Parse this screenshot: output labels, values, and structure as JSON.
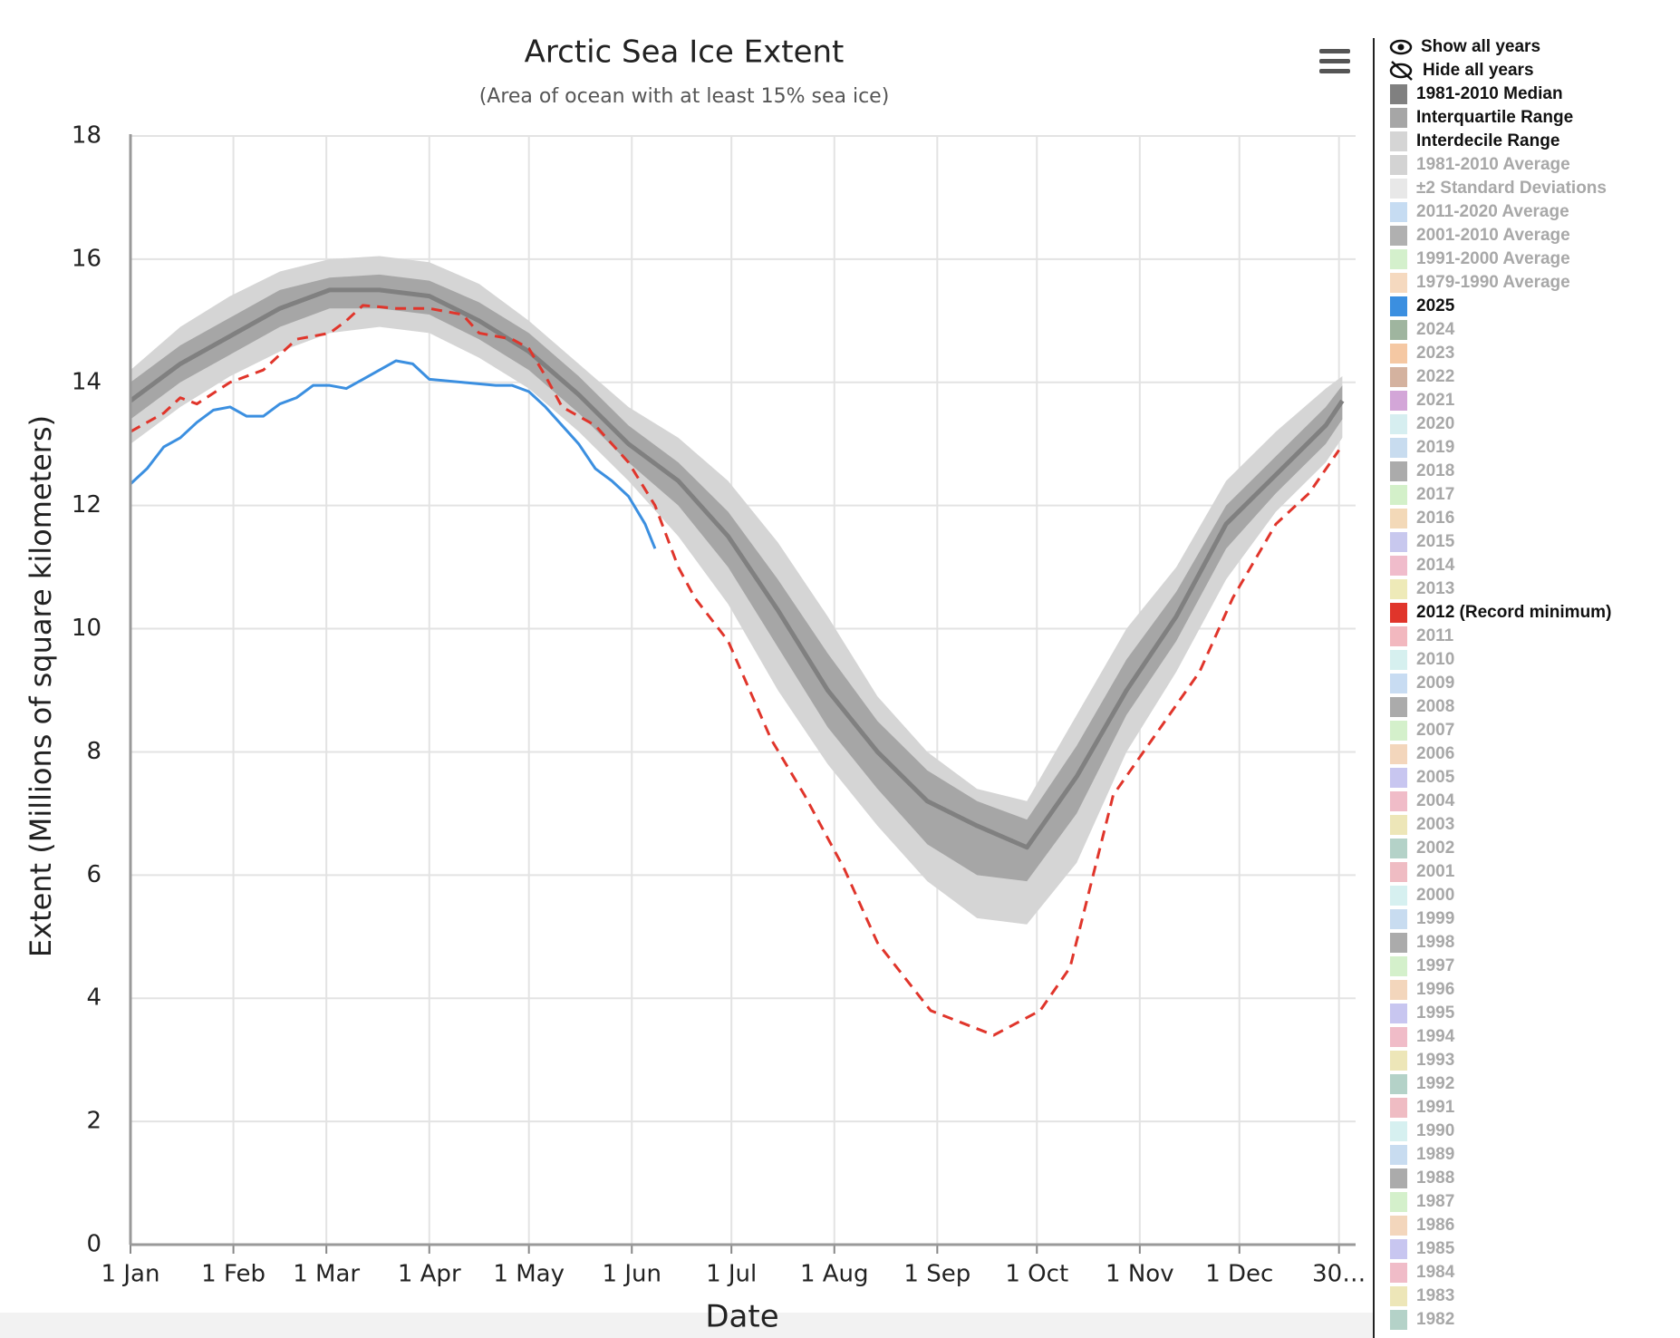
{
  "chart_data": {
    "type": "line",
    "title": "Arctic Sea Ice Extent",
    "subtitle": "(Area of ocean with at least 15% sea ice)",
    "xlabel": "Date",
    "ylabel": "Extent (Millions of square kilometers)",
    "xlim": [
      0,
      369
    ],
    "ylim": [
      0,
      18
    ],
    "yticks": [
      0,
      2,
      4,
      6,
      8,
      10,
      12,
      14,
      16,
      18
    ],
    "xticks": [
      {
        "value": 0,
        "label": "1 Jan"
      },
      {
        "value": 31,
        "label": "1 Feb"
      },
      {
        "value": 59,
        "label": "1 Mar"
      },
      {
        "value": 90,
        "label": "1 Apr"
      },
      {
        "value": 120,
        "label": "1 May"
      },
      {
        "value": 151,
        "label": "1 Jun"
      },
      {
        "value": 181,
        "label": "1 Jul"
      },
      {
        "value": 212,
        "label": "1 Aug"
      },
      {
        "value": 243,
        "label": "1 Sep"
      },
      {
        "value": 273,
        "label": "1 Oct"
      },
      {
        "value": 304,
        "label": "1 Nov"
      },
      {
        "value": 334,
        "label": "1 Dec"
      },
      {
        "value": 364,
        "label": "30…"
      }
    ],
    "grid": true,
    "x": [
      0,
      15,
      30,
      45,
      60,
      75,
      90,
      105,
      120,
      135,
      150,
      165,
      180,
      195,
      210,
      225,
      240,
      255,
      270,
      285,
      300,
      315,
      330,
      345,
      360,
      365
    ],
    "controls": [
      "Show all years",
      "Hide all years"
    ],
    "series": [
      {
        "name": "1981-2010 Median",
        "color": "#808080",
        "active": true,
        "kind": "line",
        "values": [
          13.7,
          14.3,
          14.75,
          15.2,
          15.5,
          15.5,
          15.4,
          15.0,
          14.5,
          13.8,
          13.0,
          12.4,
          11.5,
          10.3,
          9.0,
          8.0,
          7.2,
          6.8,
          6.45,
          7.6,
          9.0,
          10.2,
          11.7,
          12.5,
          13.3,
          13.7
        ]
      },
      {
        "name": "Interquartile Range",
        "color": "#a6a6a6",
        "active": true,
        "kind": "band",
        "lower": [
          13.4,
          14.0,
          14.45,
          14.9,
          15.2,
          15.2,
          15.1,
          14.7,
          14.2,
          13.5,
          12.7,
          12.0,
          11.0,
          9.7,
          8.4,
          7.4,
          6.5,
          6.0,
          5.9,
          7.0,
          8.6,
          9.8,
          11.3,
          12.2,
          13.0,
          13.4
        ],
        "upper": [
          14.0,
          14.6,
          15.05,
          15.5,
          15.7,
          15.75,
          15.65,
          15.3,
          14.8,
          14.1,
          13.3,
          12.7,
          11.9,
          10.8,
          9.6,
          8.5,
          7.7,
          7.2,
          6.9,
          8.1,
          9.5,
          10.6,
          12.0,
          12.8,
          13.6,
          13.95
        ]
      },
      {
        "name": "Interdecile Range",
        "color": "#d5d5d5",
        "active": true,
        "kind": "band",
        "lower": [
          13.0,
          13.6,
          14.1,
          14.5,
          14.8,
          14.9,
          14.8,
          14.4,
          13.9,
          13.2,
          12.4,
          11.5,
          10.4,
          9.0,
          7.8,
          6.8,
          5.9,
          5.3,
          5.2,
          6.2,
          8.0,
          9.3,
          10.8,
          11.9,
          12.7,
          13.1
        ],
        "upper": [
          14.2,
          14.9,
          15.4,
          15.8,
          16.0,
          16.05,
          15.95,
          15.6,
          15.0,
          14.3,
          13.6,
          13.1,
          12.4,
          11.4,
          10.2,
          8.9,
          8.0,
          7.4,
          7.2,
          8.6,
          10.0,
          11.0,
          12.4,
          13.2,
          13.9,
          14.1
        ]
      },
      {
        "name": "1981-2010 Average",
        "color": "#d3d3d3",
        "active": false
      },
      {
        "name": "±2 Standard Deviations",
        "color": "#e8e8e8",
        "active": false
      },
      {
        "name": "2011-2020 Average",
        "color": "#c6dcf2",
        "active": false
      },
      {
        "name": "2001-2010 Average",
        "color": "#b0b0b0",
        "active": false
      },
      {
        "name": "1991-2000 Average",
        "color": "#d4f0cc",
        "active": false
      },
      {
        "name": "1979-1990 Average",
        "color": "#f5d9bf",
        "active": false
      },
      {
        "name": "2025",
        "color": "#3b8fe0",
        "active": true,
        "kind": "line",
        "x": [
          0,
          5,
          10,
          15,
          20,
          25,
          30,
          35,
          40,
          45,
          50,
          55,
          60,
          65,
          70,
          75,
          80,
          85,
          90,
          100,
          110,
          115,
          120,
          125,
          130,
          135,
          140,
          145,
          150,
          155,
          158
        ],
        "values": [
          12.35,
          12.6,
          12.95,
          13.1,
          13.35,
          13.55,
          13.6,
          13.45,
          13.45,
          13.65,
          13.75,
          13.95,
          13.95,
          13.9,
          14.05,
          14.2,
          14.35,
          14.3,
          14.05,
          14.0,
          13.95,
          13.95,
          13.85,
          13.6,
          13.3,
          13.0,
          12.6,
          12.4,
          12.15,
          11.7,
          11.3
        ]
      },
      {
        "name": "2024",
        "color": "#9fb59f",
        "active": false
      },
      {
        "name": "2023",
        "color": "#f5c8a3",
        "active": false
      },
      {
        "name": "2022",
        "color": "#d4b29f",
        "active": false
      },
      {
        "name": "2021",
        "color": "#d3a6d8",
        "active": false
      },
      {
        "name": "2020",
        "color": "#d6eef0",
        "active": false
      },
      {
        "name": "2019",
        "color": "#c8dcef",
        "active": false
      },
      {
        "name": "2018",
        "color": "#ababab",
        "active": false
      },
      {
        "name": "2017",
        "color": "#d3f0c9",
        "active": false
      },
      {
        "name": "2016",
        "color": "#f3d9b8",
        "active": false
      },
      {
        "name": "2015",
        "color": "#c8c8ee",
        "active": false
      },
      {
        "name": "2014",
        "color": "#f0bccb",
        "active": false
      },
      {
        "name": "2013",
        "color": "#eeeab8",
        "active": false
      },
      {
        "name": "2012 (Record minimum)",
        "color": "#e0352b",
        "active": true,
        "kind": "line",
        "dash": true,
        "x": [
          0,
          10,
          15,
          20,
          30,
          40,
          50,
          60,
          65,
          70,
          80,
          90,
          100,
          105,
          115,
          120,
          125,
          130,
          140,
          150,
          158,
          165,
          170,
          180,
          193,
          203,
          215,
          225,
          241,
          260,
          274,
          283,
          296,
          309,
          322,
          332,
          345,
          355,
          364
        ],
        "values": [
          13.2,
          13.5,
          13.75,
          13.65,
          14.0,
          14.2,
          14.7,
          14.8,
          15.0,
          15.25,
          15.2,
          15.2,
          15.1,
          14.8,
          14.7,
          14.55,
          14.1,
          13.6,
          13.3,
          12.7,
          12.0,
          11.0,
          10.5,
          9.8,
          8.2,
          7.3,
          6.1,
          4.9,
          3.8,
          3.4,
          3.8,
          4.5,
          7.3,
          8.3,
          9.3,
          10.5,
          11.7,
          12.2,
          12.9
        ]
      },
      {
        "name": "2011",
        "color": "#f2b8bf",
        "active": false
      },
      {
        "name": "2010",
        "color": "#d6f0ef",
        "active": false
      },
      {
        "name": "2009",
        "color": "#c8dcf2",
        "active": false
      },
      {
        "name": "2008",
        "color": "#ababab",
        "active": false
      },
      {
        "name": "2007",
        "color": "#d4f0cb",
        "active": false
      },
      {
        "name": "2006",
        "color": "#f3d6bc",
        "active": false
      },
      {
        "name": "2005",
        "color": "#c8c6f0",
        "active": false
      },
      {
        "name": "2004",
        "color": "#f0bcc8",
        "active": false
      },
      {
        "name": "2003",
        "color": "#ede6b8",
        "active": false
      },
      {
        "name": "2002",
        "color": "#b4d2c8",
        "active": false
      },
      {
        "name": "2001",
        "color": "#efbcc3",
        "active": false
      },
      {
        "name": "2000",
        "color": "#d6f0f0",
        "active": false
      },
      {
        "name": "1999",
        "color": "#c8dcf0",
        "active": false
      },
      {
        "name": "1998",
        "color": "#ababab",
        "active": false
      },
      {
        "name": "1997",
        "color": "#d4f0cb",
        "active": false
      },
      {
        "name": "1996",
        "color": "#f3d6bc",
        "active": false
      },
      {
        "name": "1995",
        "color": "#c8c6f0",
        "active": false
      },
      {
        "name": "1994",
        "color": "#f0bcc8",
        "active": false
      },
      {
        "name": "1993",
        "color": "#ede6b8",
        "active": false
      },
      {
        "name": "1992",
        "color": "#b4d2c8",
        "active": false
      },
      {
        "name": "1991",
        "color": "#efbcc3",
        "active": false
      },
      {
        "name": "1990",
        "color": "#d6f0f0",
        "active": false
      },
      {
        "name": "1989",
        "color": "#c8dcf0",
        "active": false
      },
      {
        "name": "1988",
        "color": "#ababab",
        "active": false
      },
      {
        "name": "1987",
        "color": "#d4f0cb",
        "active": false
      },
      {
        "name": "1986",
        "color": "#f3d6bc",
        "active": false
      },
      {
        "name": "1985",
        "color": "#c8c6f0",
        "active": false
      },
      {
        "name": "1984",
        "color": "#f0bcc8",
        "active": false
      },
      {
        "name": "1983",
        "color": "#ede6b8",
        "active": false
      },
      {
        "name": "1982",
        "color": "#b4d2c8",
        "active": false
      }
    ]
  }
}
